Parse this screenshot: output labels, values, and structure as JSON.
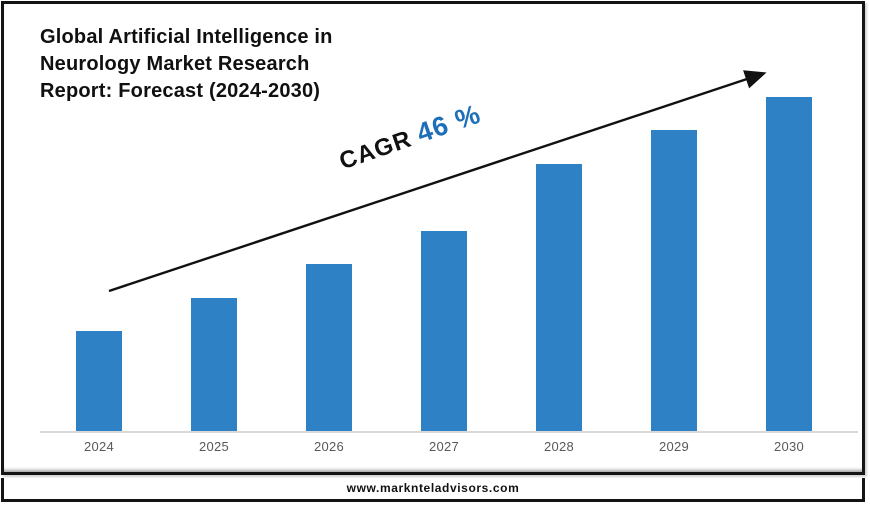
{
  "title": {
    "full": "Global Artificial Intelligence in Neurology Market Research Report: Forecast (2024-2030)",
    "lines": [
      "Global Artificial Intelligence in",
      "Neurology Market Research",
      "Report: Forecast (2024-2030)"
    ]
  },
  "annotation": {
    "prefix": "CAGR ",
    "value": "46 %"
  },
  "footer": {
    "url": "www.marknteladvisors.com"
  },
  "colors": {
    "bar": "#2e81c4",
    "annotation_accent": "#1d6fb8",
    "annotation_prefix": "#111111",
    "axis_line": "#d9d9d9",
    "x_labels": "#595959",
    "frame_border": "#141414",
    "background": "#ffffff"
  },
  "chart_data": {
    "type": "bar",
    "title": "Global Artificial Intelligence in Neurology Market Research Report: Forecast (2024-2030)",
    "categories": [
      "2024",
      "2025",
      "2026",
      "2027",
      "2028",
      "2029",
      "2030"
    ],
    "values": [
      3,
      4,
      5,
      6,
      8,
      9,
      10
    ],
    "values_note": "No value axis is shown in the figure; values are relative bar heights estimated from pixels (2024=3 units scaling up to 2030=10 units).",
    "xlabel": "",
    "ylabel": "",
    "ylim": [
      0,
      10
    ],
    "grid": false,
    "legend": false,
    "series_color": "#2e81c4",
    "annotations": [
      {
        "text": "CAGR 46 %",
        "type": "rotated-label",
        "accent": "46 %",
        "accent_color": "#1d6fb8"
      },
      {
        "type": "trend-arrow",
        "direction": "up-right"
      }
    ]
  }
}
